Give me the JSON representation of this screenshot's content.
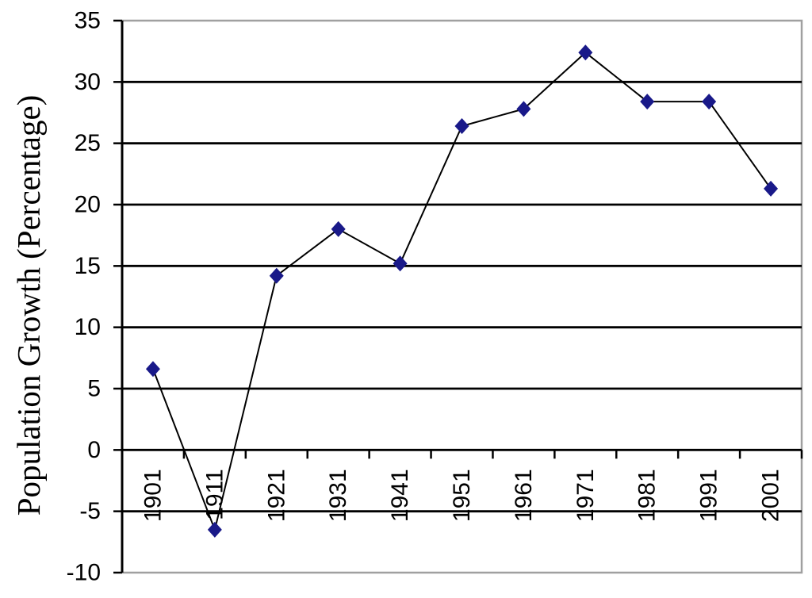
{
  "chart_data": {
    "type": "line",
    "title": "",
    "xlabel": "",
    "ylabel": "Population Growth (Percentage)",
    "categories": [
      "1901",
      "1911",
      "1921",
      "1931",
      "1941",
      "1951",
      "1961",
      "1971",
      "1981",
      "1991",
      "2001"
    ],
    "series": [
      {
        "name": "Population Growth",
        "values": [
          6.6,
          -6.5,
          14.2,
          18.0,
          15.2,
          26.4,
          27.8,
          32.4,
          28.4,
          28.4,
          21.3
        ],
        "line_color": "#000000",
        "marker": "diamond",
        "marker_color": "#191989"
      }
    ],
    "ylim": [
      -10,
      35
    ],
    "yticks": [
      35,
      30,
      25,
      20,
      15,
      10,
      5,
      0,
      -5,
      -10
    ],
    "grid": "horizontal",
    "legend": "none",
    "x_labels_rotated_degrees": 90,
    "colors": {
      "gridline": "#000000",
      "border": "#a0a0a0",
      "axis": "#000000",
      "text": "#000000",
      "background": "#ffffff"
    }
  }
}
